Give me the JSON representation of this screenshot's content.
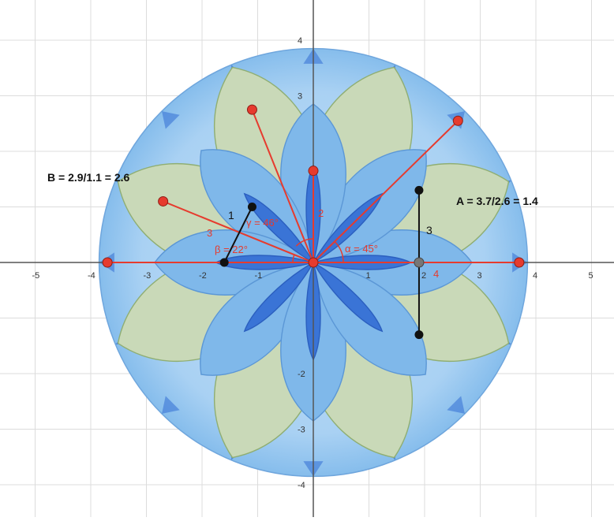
{
  "colors": {
    "grid": "#dcdcdc",
    "axis": "#555555",
    "petal_blue": "#7fb8ea",
    "petal_green": "#c9d9b8",
    "deep_blue": "#3a74d6",
    "outer_blue": "#a9d1f3",
    "red": "#e63b2e",
    "black": "#111111"
  },
  "axes": {
    "x_ticks": [
      "-5",
      "-4",
      "-3",
      "-2",
      "-1",
      "1",
      "2",
      "3",
      "4",
      "5"
    ],
    "y_ticks": [
      "4",
      "3",
      "-2",
      "-3",
      "-4"
    ],
    "x_range": [
      -5.6,
      5.4
    ],
    "y_range": [
      -4.4,
      4.5
    ]
  },
  "annotations": {
    "formula_b": "B = 2.9/1.1 = 2.6",
    "formula_a": "A = 3.7/2.6 = 1.4",
    "angle_gamma": "γ = 46°",
    "angle_beta": "β = 22°",
    "angle_alpha": "α = 45°",
    "len_1": "1",
    "len_2": "2",
    "len_3_left": "3",
    "len_3_right": "3",
    "len_4": "4"
  },
  "points": {
    "origin": [
      0,
      0
    ],
    "red_top": [
      0,
      1.65
    ],
    "red_upper_left": [
      -1.1,
      2.75
    ],
    "red_upper_right": [
      2.6,
      2.55
    ],
    "red_left_mid": [
      -2.7,
      1.1
    ],
    "red_far_left": [
      -3.7,
      0
    ],
    "red_far_right": [
      3.7,
      0
    ],
    "black_left_top": [
      -1.1,
      1.0
    ],
    "black_left_bottom": [
      -1.6,
      0
    ],
    "black_vert_top": [
      1.9,
      1.3
    ],
    "black_vert_bottom": [
      1.9,
      -1.3
    ],
    "gray_axis": [
      1.9,
      0
    ]
  },
  "rosette": {
    "circle_radius": 3.85,
    "petal_count": 8,
    "petal_length": 2.85
  }
}
